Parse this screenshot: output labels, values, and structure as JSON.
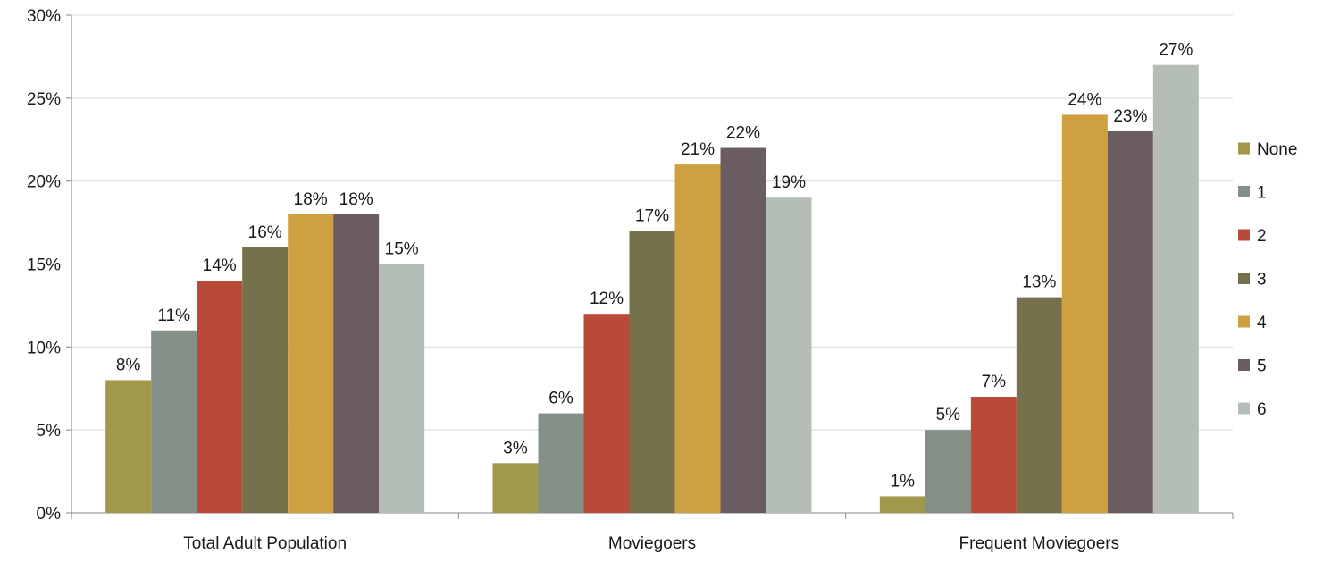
{
  "chart_data": {
    "type": "bar",
    "title": "",
    "xlabel": "",
    "ylabel": "",
    "categories": [
      "Total Adult Population",
      "Moviegoers",
      "Frequent Moviegoers"
    ],
    "series": [
      {
        "name": "None",
        "values": [
          8,
          3,
          1
        ],
        "labels": [
          "8%",
          "3%",
          "1%"
        ],
        "color": "#a0984a"
      },
      {
        "name": "1",
        "values": [
          11,
          6,
          5
        ],
        "labels": [
          "11%",
          "6%",
          "5%"
        ],
        "color": "#848f88"
      },
      {
        "name": "2",
        "values": [
          14,
          12,
          7
        ],
        "labels": [
          "14%",
          "12%",
          "7%"
        ],
        "color": "#b94a37"
      },
      {
        "name": "3",
        "values": [
          16,
          17,
          13
        ],
        "labels": [
          "16%",
          "17%",
          "13%"
        ],
        "color": "#75714c"
      },
      {
        "name": "4",
        "values": [
          18,
          21,
          24
        ],
        "labels": [
          "18%",
          "21%",
          "24%"
        ],
        "color": "#cfa042"
      },
      {
        "name": "5",
        "values": [
          18,
          22,
          23
        ],
        "labels": [
          "18%",
          "22%",
          "23%"
        ],
        "color": "#6a5c60"
      },
      {
        "name": "6",
        "values": [
          15,
          19,
          27
        ],
        "labels": [
          "15%",
          "19%",
          "27%"
        ],
        "color": "#b5bdb7"
      }
    ],
    "ylim": [
      0,
      30
    ],
    "yticks": [
      0,
      5,
      10,
      15,
      20,
      25,
      30
    ],
    "ytick_labels": [
      "0%",
      "5%",
      "10%",
      "15%",
      "20%",
      "25%",
      "30%"
    ],
    "grid": true,
    "legend_position": "right",
    "gridline_color": "#d9d9d9",
    "axis_color": "#868686"
  }
}
